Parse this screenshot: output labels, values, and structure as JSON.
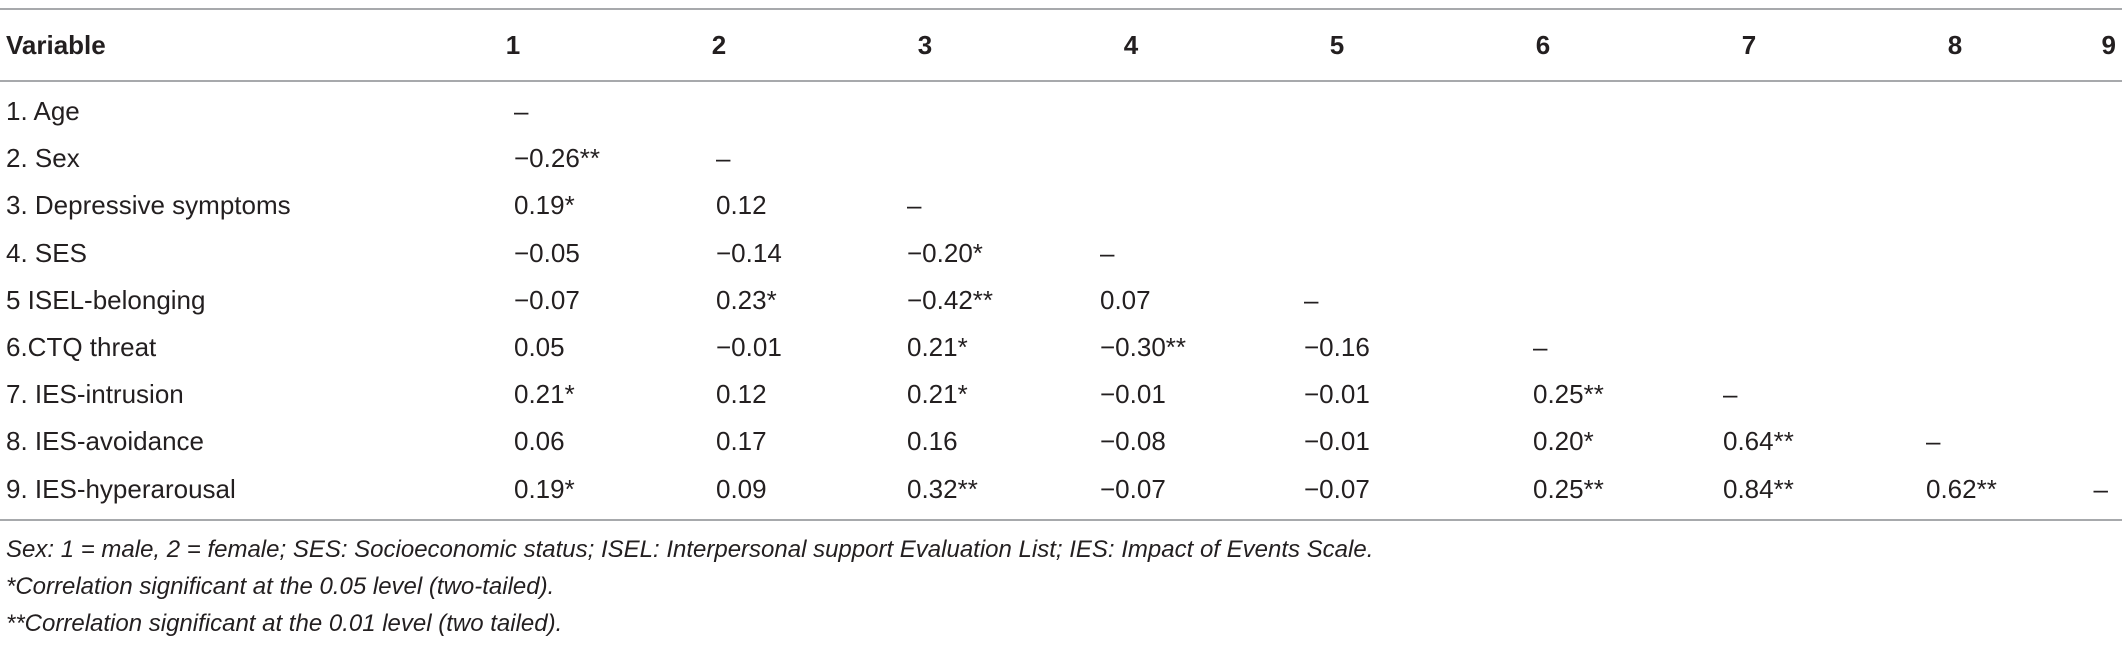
{
  "table": {
    "headers": [
      "Variable",
      "1",
      "2",
      "3",
      "4",
      "5",
      "6",
      "7",
      "8",
      "9"
    ],
    "rows": [
      {
        "label": "1. Age",
        "cells": [
          "–",
          "",
          "",
          "",
          "",
          "",
          "",
          "",
          ""
        ]
      },
      {
        "label": "2. Sex",
        "cells": [
          "−0.26**",
          "–",
          "",
          "",
          "",
          "",
          "",
          "",
          ""
        ]
      },
      {
        "label": "3. Depressive symptoms",
        "cells": [
          "0.19*",
          "0.12",
          "–",
          "",
          "",
          "",
          "",
          "",
          ""
        ]
      },
      {
        "label": "4. SES",
        "cells": [
          "−0.05",
          "−0.14",
          "−0.20*",
          "–",
          "",
          "",
          "",
          "",
          ""
        ]
      },
      {
        "label": "5 ISEL-belonging",
        "cells": [
          "−0.07",
          "0.23*",
          "−0.42**",
          "0.07",
          "–",
          "",
          "",
          "",
          ""
        ]
      },
      {
        "label": "6.CTQ threat",
        "cells": [
          "0.05",
          "−0.01",
          "0.21*",
          "−0.30**",
          "−0.16",
          "–",
          "",
          "",
          ""
        ]
      },
      {
        "label": "7. IES-intrusion",
        "cells": [
          "0.21*",
          "0.12",
          "0.21*",
          "−0.01",
          "−0.01",
          "0.25**",
          "–",
          "",
          ""
        ]
      },
      {
        "label": "8. IES-avoidance",
        "cells": [
          "0.06",
          "0.17",
          "0.16",
          "−0.08",
          "−0.01",
          "0.20*",
          "0.64**",
          "–",
          ""
        ]
      },
      {
        "label": "9. IES-hyperarousal",
        "cells": [
          "0.19*",
          "0.09",
          "0.32**",
          "−0.07",
          "−0.07",
          "0.25**",
          "0.84**",
          "0.62**",
          "–"
        ]
      }
    ]
  },
  "notes": [
    "Sex: 1 = male, 2 = female; SES: Socioeconomic status; ISEL: Interpersonal support Evaluation List; IES: Impact of Events Scale.",
    "*Correlation significant at the 0.05 level (two-tailed).",
    "**Correlation significant at the 0.01 level (two tailed)."
  ]
}
